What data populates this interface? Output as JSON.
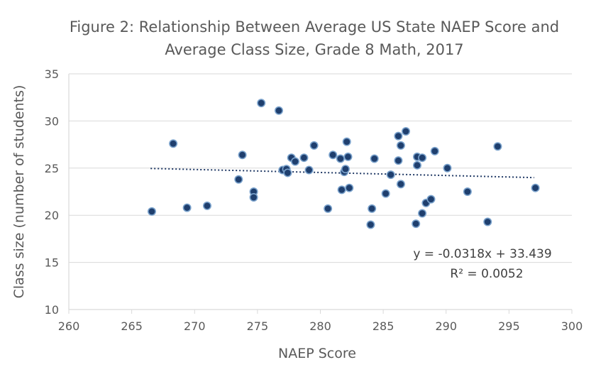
{
  "chart_data": {
    "type": "scatter",
    "title": "Figure 2: Relationship Between Average US State NAEP Score and Average Class Size, Grade 8 Math, 2017",
    "title_lines": [
      "Figure 2: Relationship Between Average US State NAEP Score and",
      "Average Class Size, Grade 8 Math, 2017"
    ],
    "xlabel": "NAEP Score",
    "ylabel": "Class size (number of students)",
    "xlim": [
      260,
      300
    ],
    "ylim": [
      10,
      35
    ],
    "xticks": [
      260,
      265,
      270,
      275,
      280,
      285,
      290,
      295,
      300
    ],
    "yticks": [
      10,
      15,
      20,
      25,
      30,
      35
    ],
    "grid": "horizontal",
    "legend": "none",
    "colors": {
      "marker_fill": "#1f3f6e",
      "marker_edge": "#7aa2cc",
      "trendline": "#1f3864",
      "grid": "#d9d9d9",
      "text": "#595959"
    },
    "trendline": {
      "type": "linear",
      "slope": -0.0318,
      "intercept": 33.439,
      "x_range": [
        266.5,
        297
      ],
      "equation_label": "y = -0.0318x + 33.439",
      "r2_label": "R² = 0.0052"
    },
    "points": [
      {
        "x": 266.6,
        "y": 20.4
      },
      {
        "x": 268.3,
        "y": 27.6
      },
      {
        "x": 269.4,
        "y": 20.8
      },
      {
        "x": 271.0,
        "y": 21.0
      },
      {
        "x": 273.5,
        "y": 23.8
      },
      {
        "x": 273.8,
        "y": 26.4
      },
      {
        "x": 274.7,
        "y": 22.5
      },
      {
        "x": 274.7,
        "y": 21.9
      },
      {
        "x": 275.3,
        "y": 31.9
      },
      {
        "x": 276.7,
        "y": 31.1
      },
      {
        "x": 277.0,
        "y": 24.8
      },
      {
        "x": 277.3,
        "y": 24.9
      },
      {
        "x": 277.4,
        "y": 24.5
      },
      {
        "x": 277.7,
        "y": 26.1
      },
      {
        "x": 278.0,
        "y": 25.7
      },
      {
        "x": 278.7,
        "y": 26.1
      },
      {
        "x": 279.1,
        "y": 24.8
      },
      {
        "x": 279.5,
        "y": 27.4
      },
      {
        "x": 280.6,
        "y": 20.7
      },
      {
        "x": 281.0,
        "y": 26.4
      },
      {
        "x": 281.6,
        "y": 26.0
      },
      {
        "x": 281.7,
        "y": 22.7
      },
      {
        "x": 281.9,
        "y": 24.6
      },
      {
        "x": 282.0,
        "y": 24.9
      },
      {
        "x": 282.1,
        "y": 27.8
      },
      {
        "x": 282.2,
        "y": 26.2
      },
      {
        "x": 282.3,
        "y": 22.9
      },
      {
        "x": 284.0,
        "y": 19.0
      },
      {
        "x": 284.1,
        "y": 20.7
      },
      {
        "x": 284.3,
        "y": 26.0
      },
      {
        "x": 285.2,
        "y": 22.3
      },
      {
        "x": 285.6,
        "y": 24.3
      },
      {
        "x": 286.2,
        "y": 28.4
      },
      {
        "x": 286.2,
        "y": 25.8
      },
      {
        "x": 286.4,
        "y": 27.4
      },
      {
        "x": 286.4,
        "y": 23.3
      },
      {
        "x": 286.8,
        "y": 28.9
      },
      {
        "x": 287.6,
        "y": 19.1
      },
      {
        "x": 287.7,
        "y": 26.2
      },
      {
        "x": 287.7,
        "y": 25.3
      },
      {
        "x": 288.1,
        "y": 26.1
      },
      {
        "x": 288.1,
        "y": 20.2
      },
      {
        "x": 288.4,
        "y": 21.3
      },
      {
        "x": 288.8,
        "y": 21.7
      },
      {
        "x": 289.1,
        "y": 26.8
      },
      {
        "x": 290.1,
        "y": 25.0
      },
      {
        "x": 291.7,
        "y": 22.5
      },
      {
        "x": 293.3,
        "y": 19.3
      },
      {
        "x": 294.1,
        "y": 27.3
      },
      {
        "x": 297.1,
        "y": 22.9
      }
    ]
  }
}
